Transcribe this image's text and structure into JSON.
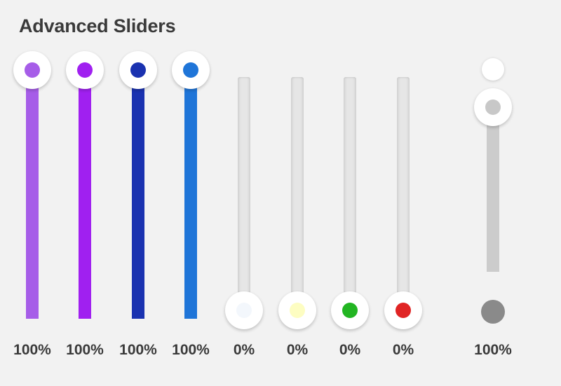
{
  "panel": {
    "title": "Advanced Sliders"
  },
  "sliders": [
    {
      "label": "100%",
      "value": 100,
      "color": "#a65de8"
    },
    {
      "label": "100%",
      "value": 100,
      "color": "#a020f0"
    },
    {
      "label": "100%",
      "value": 100,
      "color": "#1a32b0"
    },
    {
      "label": "100%",
      "value": 100,
      "color": "#1f75d8"
    },
    {
      "label": "0%",
      "value": 0,
      "color": "#f3f7fc"
    },
    {
      "label": "0%",
      "value": 0,
      "color": "#fdfdc2"
    },
    {
      "label": "0%",
      "value": 0,
      "color": "#22b522"
    },
    {
      "label": "0%",
      "value": 0,
      "color": "#e02424"
    }
  ],
  "range_slider": {
    "label": "100%",
    "track_color": "#cccccc",
    "knob_dot_color": "#c8c8c8",
    "handle_color": "#8a8a8a"
  }
}
